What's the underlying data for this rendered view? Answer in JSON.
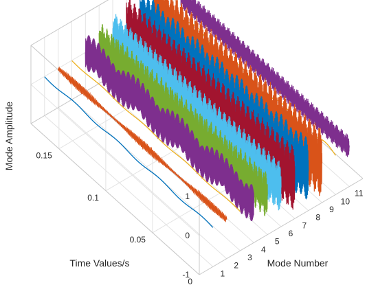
{
  "chart_data": {
    "type": "line3d",
    "xlabel": "Time Values/s",
    "ylabel": "Mode Number",
    "zlabel": "Mode Amplitude",
    "xlim": [
      0,
      0.18
    ],
    "ylim": [
      0,
      12
    ],
    "zlim": [
      -1,
      1
    ],
    "x_ticks": [
      "0",
      "0.05",
      "0.1",
      "0.15"
    ],
    "y_ticks": [
      "1",
      "2",
      "3",
      "4",
      "5",
      "6",
      "7",
      "8",
      "9",
      "10",
      "11"
    ],
    "z_ticks": [
      "-1",
      "0",
      "1"
    ],
    "grid": true,
    "series": [
      {
        "mode": 1,
        "color": "#0072BD",
        "amplitude": 0.03,
        "oscillation": "slow"
      },
      {
        "mode": 2,
        "color": "#D95319",
        "amplitude": 0.1,
        "oscillation": "fast"
      },
      {
        "mode": 3,
        "color": "#EDB120",
        "amplitude": 0.02,
        "oscillation": "slow"
      },
      {
        "mode": 4,
        "color": "#7E2F8E",
        "amplitude": 0.55,
        "oscillation": "beating"
      },
      {
        "mode": 5,
        "color": "#77AC30",
        "amplitude": 0.6,
        "oscillation": "beating"
      },
      {
        "mode": 6,
        "color": "#4DBEEE",
        "amplitude": 0.65,
        "oscillation": "beating"
      },
      {
        "mode": 7,
        "color": "#A2142F",
        "amplitude": 0.85,
        "oscillation": "beating"
      },
      {
        "mode": 8,
        "color": "#0072BD",
        "amplitude": 0.85,
        "oscillation": "beating"
      },
      {
        "mode": 9,
        "color": "#D95319",
        "amplitude": 0.9,
        "oscillation": "beating"
      },
      {
        "mode": 10,
        "color": "#EDB120",
        "amplitude": 0.1,
        "oscillation": "slow"
      },
      {
        "mode": 11,
        "color": "#7E2F8E",
        "amplitude": 0.3,
        "oscillation": "beating"
      }
    ]
  }
}
